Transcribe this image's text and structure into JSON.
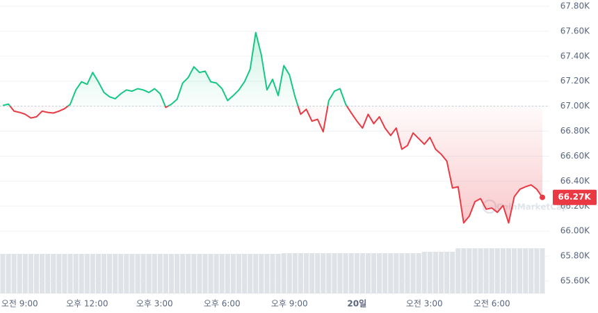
{
  "chart_data": {
    "type": "line",
    "categories": [
      null,
      null,
      null,
      "오전 9:00",
      null,
      null,
      null,
      null,
      null,
      null,
      null,
      null,
      null,
      null,
      null,
      "오후 12:00",
      null,
      null,
      null,
      null,
      null,
      null,
      null,
      null,
      null,
      null,
      null,
      "오후 3:00",
      null,
      null,
      null,
      null,
      null,
      null,
      null,
      null,
      null,
      null,
      null,
      "오후 6:00",
      null,
      null,
      null,
      null,
      null,
      null,
      null,
      null,
      null,
      null,
      null,
      "오후 9:00",
      null,
      null,
      null,
      null,
      null,
      null,
      null,
      null,
      null,
      null,
      null,
      "20일",
      null,
      null,
      null,
      null,
      null,
      null,
      null,
      null,
      null,
      null,
      null,
      "오전 3:00",
      null,
      null,
      null,
      null,
      null,
      null,
      null,
      null,
      null,
      null,
      null,
      "오전 6:00",
      null,
      null,
      null,
      null,
      null,
      null,
      null,
      null,
      null
    ],
    "values": [
      67005,
      67017,
      66960,
      66950,
      66935,
      66905,
      66915,
      66960,
      66950,
      66945,
      66960,
      66980,
      67015,
      67130,
      67195,
      67175,
      67270,
      67195,
      67110,
      67075,
      67060,
      67100,
      67130,
      67120,
      67140,
      67130,
      67110,
      67140,
      67100,
      66990,
      67015,
      67055,
      67185,
      67230,
      67315,
      67270,
      67280,
      67195,
      67185,
      67140,
      67045,
      67085,
      67130,
      67195,
      67295,
      67590,
      67410,
      67130,
      67215,
      67085,
      67325,
      67250,
      67075,
      66935,
      66975,
      66880,
      66895,
      66795,
      67045,
      67120,
      67140,
      67015,
      66945,
      66880,
      66825,
      66935,
      66860,
      66915,
      66825,
      66765,
      66825,
      66655,
      66685,
      66785,
      66740,
      66695,
      66750,
      66655,
      66615,
      66560,
      66345,
      66355,
      66065,
      66120,
      66235,
      66260,
      66175,
      66185,
      66150,
      66205,
      66065,
      66275,
      66335,
      66355,
      66370,
      66335,
      66270
    ],
    "value_labels": [
      null,
      null,
      null,
      null,
      null,
      null,
      null,
      null,
      null,
      null,
      null,
      null,
      null,
      null,
      null,
      null,
      null,
      null,
      null,
      null,
      null,
      null,
      null,
      null,
      null,
      null,
      null,
      null,
      null,
      null,
      null,
      null,
      null,
      null,
      null,
      null,
      null,
      null,
      null,
      null,
      null,
      null,
      null,
      null,
      null,
      null,
      null,
      null,
      null,
      null,
      null,
      null,
      null,
      null,
      null,
      null,
      null,
      null,
      null,
      null,
      null,
      null,
      null,
      null,
      null,
      null,
      null,
      null,
      null,
      null,
      null,
      null,
      null,
      null,
      null,
      null,
      null,
      null,
      null,
      null,
      null,
      null,
      null,
      null,
      null,
      null,
      null,
      null,
      null,
      null,
      null,
      null,
      null,
      null,
      null,
      null,
      "66.27K"
    ],
    "volume": [
      57,
      57,
      57,
      57,
      57,
      57,
      57,
      57,
      57,
      57,
      57,
      57,
      57,
      57,
      57,
      57,
      57,
      57,
      57,
      57,
      57,
      57,
      57,
      57,
      57,
      57,
      57,
      57,
      57,
      57,
      57,
      57,
      57,
      57,
      57,
      57,
      57,
      57,
      57,
      57,
      57,
      57,
      57,
      57,
      57,
      57,
      57,
      57,
      57,
      57,
      58,
      58,
      58,
      58,
      58,
      58,
      58,
      58,
      58,
      58,
      58,
      58,
      58,
      58,
      58,
      58,
      58,
      58,
      58,
      58,
      58,
      58,
      58,
      58,
      58,
      60,
      60,
      60,
      60,
      60,
      60,
      65,
      65,
      65,
      65,
      65,
      65,
      65,
      65,
      65,
      65,
      65,
      65,
      65,
      65,
      65,
      65
    ],
    "baseline": 67000,
    "up_color": "#16c784",
    "down_color": "#ea3943",
    "volume_color": "#dfe3e8",
    "watermark": "CoinMarketCap",
    "ylim": [
      65500,
      67850
    ],
    "yticks": [
      {
        "value": 65600,
        "label": "65.60K"
      },
      {
        "value": 65800,
        "label": "65.80K"
      },
      {
        "value": 66000,
        "label": "66.00K"
      },
      {
        "value": 66200,
        "label": "66.20K"
      },
      {
        "value": 66400,
        "label": "66.40K"
      },
      {
        "value": 66600,
        "label": "66.60K"
      },
      {
        "value": 66800,
        "label": "66.80K"
      },
      {
        "value": 67000,
        "label": "67.00K"
      },
      {
        "value": 67200,
        "label": "67.20K"
      },
      {
        "value": 67400,
        "label": "67.40K"
      },
      {
        "value": 67600,
        "label": "67.60K"
      },
      {
        "value": 67800,
        "label": "67.80K"
      }
    ],
    "grid": true
  }
}
